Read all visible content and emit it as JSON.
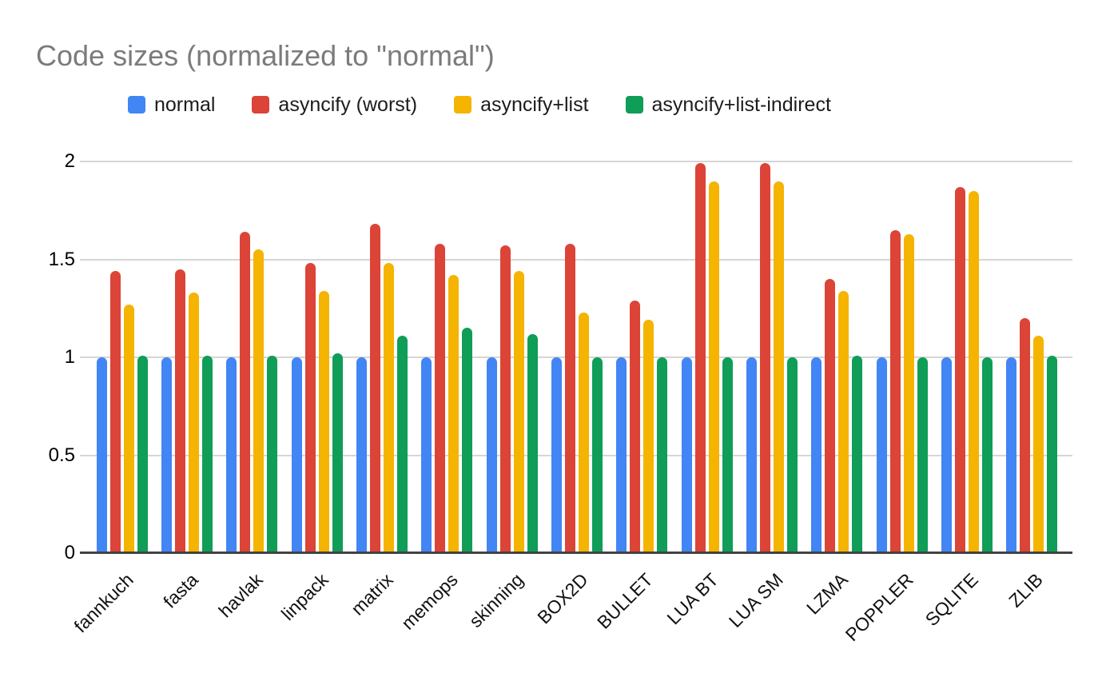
{
  "title": "Code sizes (normalized to \"normal\")",
  "chart_data": {
    "type": "bar",
    "title": "Code sizes (normalized to \"normal\")",
    "xlabel": "",
    "ylabel": "",
    "categories": [
      "fannkuch",
      "fasta",
      "havlak",
      "linpack",
      "matrix",
      "memops",
      "skinning",
      "BOX2D",
      "BULLET",
      "LUA BT",
      "LUA SM",
      "LZMA",
      "POPPLER",
      "SQLITE",
      "ZLIB"
    ],
    "series": [
      {
        "name": "normal",
        "color": "#4285F4",
        "values": [
          1.0,
          1.0,
          1.0,
          1.0,
          1.0,
          1.0,
          1.0,
          1.0,
          1.0,
          1.0,
          1.0,
          1.0,
          1.0,
          1.0,
          1.0
        ]
      },
      {
        "name": "asyncify (worst)",
        "color": "#DB4437",
        "values": [
          1.44,
          1.45,
          1.64,
          1.48,
          1.68,
          1.58,
          1.57,
          1.58,
          1.29,
          1.99,
          1.99,
          1.4,
          1.65,
          1.87,
          1.2
        ]
      },
      {
        "name": "asyncify+list",
        "color": "#F4B400",
        "values": [
          1.27,
          1.33,
          1.55,
          1.34,
          1.48,
          1.42,
          1.44,
          1.23,
          1.19,
          1.9,
          1.9,
          1.34,
          1.63,
          1.85,
          1.11
        ]
      },
      {
        "name": "asyncify+list-indirect",
        "color": "#0F9D58",
        "values": [
          1.01,
          1.01,
          1.01,
          1.02,
          1.11,
          1.15,
          1.12,
          1.0,
          1.0,
          1.0,
          1.0,
          1.01,
          1.0,
          1.0,
          1.01
        ]
      }
    ],
    "ylim": [
      0,
      2
    ],
    "yticks": [
      {
        "value": 0,
        "label": "0"
      },
      {
        "value": 0.5,
        "label": "0.5"
      },
      {
        "value": 1,
        "label": "1"
      },
      {
        "value": 1.5,
        "label": "1.5"
      },
      {
        "value": 2,
        "label": "2"
      }
    ],
    "grid": true,
    "legend_position": "top",
    "x_label_rotation_deg": -45
  },
  "colors": {
    "background": "#ffffff",
    "title_text": "#7b7b7b",
    "axis_line": "#424242",
    "gridline": "#d6d6d6",
    "tick_text": "#000000",
    "category_text": "#111111"
  }
}
